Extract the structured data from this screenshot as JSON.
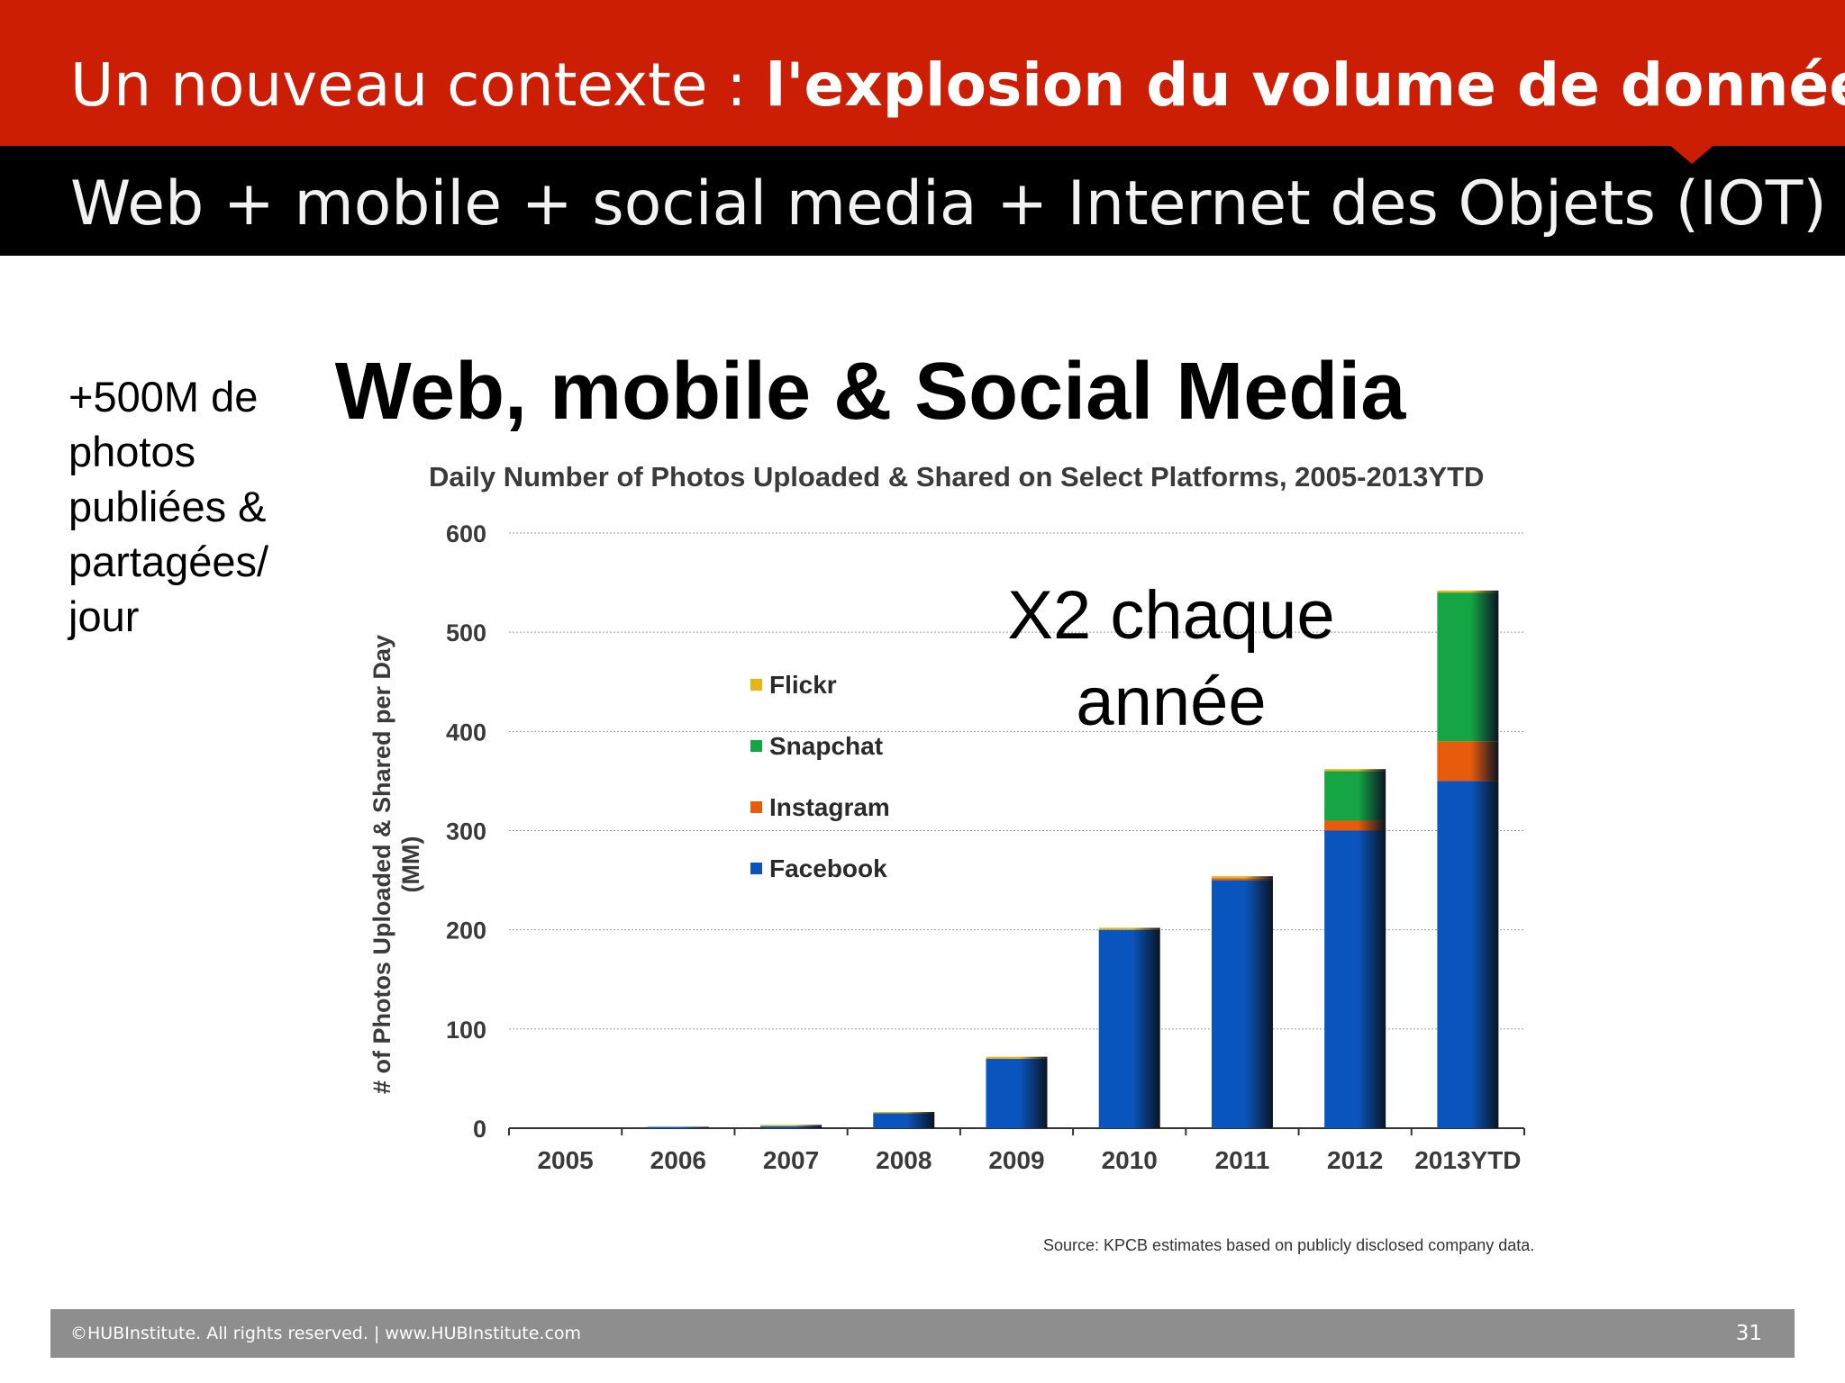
{
  "header": {
    "title_regular": "Un nouveau contexte : ",
    "title_bold": "l'explosion du volume de données",
    "subtitle": "Web + mobile + social media + Internet des Objets (IOT)"
  },
  "side_text": {
    "lines": [
      "+500M de",
      "photos",
      "publiées &",
      "partagées/",
      "jour"
    ]
  },
  "annotation": {
    "line1": "X2 chaque",
    "line2": "année"
  },
  "chart_data": {
    "type": "bar",
    "stacked": true,
    "title": "Web, mobile & Social Media",
    "subtitle": "Daily Number of Photos Uploaded & Shared on Select Platforms, 2005-2013YTD",
    "ylabel": "# of Photos Uploaded & Shared per Day (MM)",
    "xlabel": "",
    "ylim": [
      0,
      600
    ],
    "yticks": [
      0,
      100,
      200,
      300,
      400,
      500,
      600
    ],
    "categories": [
      "2005",
      "2006",
      "2007",
      "2008",
      "2009",
      "2010",
      "2011",
      "2012",
      "2013YTD"
    ],
    "series": [
      {
        "name": "Facebook",
        "color": "#0a55bd",
        "values": [
          0,
          1,
          2,
          15,
          70,
          200,
          250,
          300,
          350
        ]
      },
      {
        "name": "Instagram",
        "color": "#e85a0c",
        "values": [
          0,
          0,
          0,
          0,
          0,
          0,
          2,
          10,
          40
        ]
      },
      {
        "name": "Snapchat",
        "color": "#16a544",
        "values": [
          0,
          0,
          0,
          0,
          0,
          0,
          0,
          50,
          150
        ]
      },
      {
        "name": "Flickr",
        "color": "#e7b416",
        "values": [
          0,
          0,
          1,
          1,
          2,
          2,
          2,
          2,
          2
        ]
      }
    ],
    "legend_order": [
      "Flickr",
      "Snapchat",
      "Instagram",
      "Facebook"
    ],
    "legend_position": "upper-left-inside",
    "grid": true,
    "source": "Source: KPCB estimates based on publicly disclosed company data."
  },
  "footer": {
    "copyright": "©HUBInstitute. All rights reserved.  |   www.HUBInstitute.com",
    "page_number": "31"
  }
}
